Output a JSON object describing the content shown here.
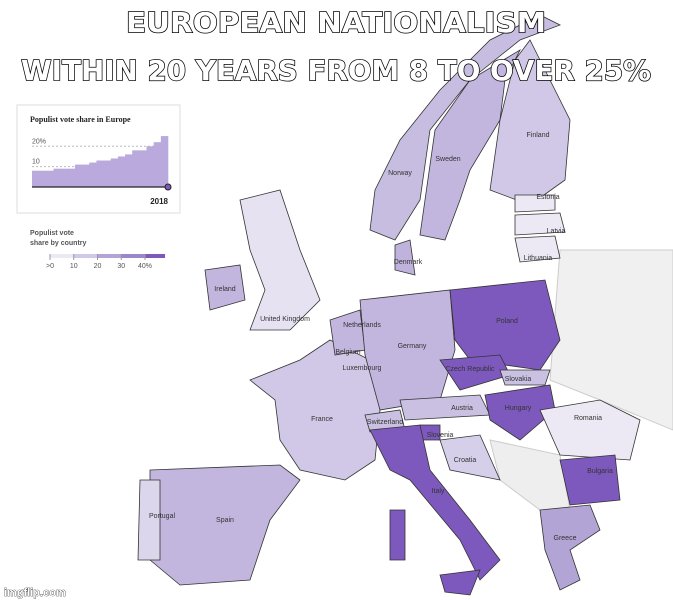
{
  "title_lines": [
    "EUROPEAN NATIONALISM",
    "WITHIN 20 YEARS FROM 8 TO OVER 25%"
  ],
  "inset": {
    "title": "Populist vote share in Europe",
    "ylim": [
      0,
      27
    ],
    "yticks": [
      {
        "value": 20,
        "label": "20%"
      },
      10
    ],
    "values": [
      8,
      8,
      8,
      9,
      9,
      9,
      11,
      11,
      12,
      13,
      13,
      14,
      15,
      16,
      18,
      18,
      20,
      22,
      25
    ],
    "end_label": "2018"
  },
  "legend": {
    "title_lines": [
      "Populist vote",
      "share by country"
    ],
    "ticks": [
      {
        "value": 0,
        "label": ">0"
      },
      10,
      20,
      30,
      {
        "value": 40,
        "label": "40%"
      }
    ]
  },
  "countries": [
    "Finland",
    "Sweden",
    "Norway",
    "Estonia",
    "Latvia",
    "Lithuania",
    "Denmark",
    "Ireland",
    "United Kingdom",
    "Netherlands",
    "Poland",
    "Germany",
    "Belgium",
    "Luxembourg",
    "Czech Republic",
    "Slovakia",
    "Austria",
    "Hungary",
    "Romania",
    "France",
    "Switzerland",
    "Slovenia",
    "Croatia",
    "Bulgaria",
    "Italy",
    "Portugal",
    "Spain",
    "Greece"
  ],
  "watermark": "imgflip.com"
}
